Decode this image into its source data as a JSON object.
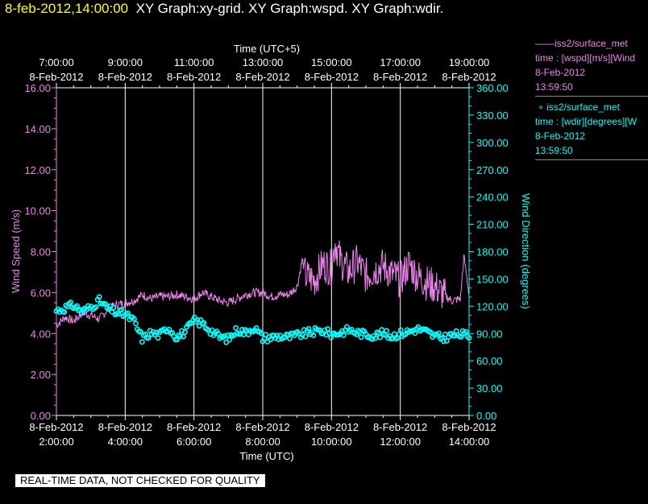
{
  "header": {
    "timestamp": "8-feb-2012,14:00:00",
    "graphs": "XY Graph:xy-grid.  XY Graph:wspd.  XY Graph:wdir."
  },
  "banner": "REAL-TIME DATA, NOT CHECKED FOR QUALITY",
  "legend": {
    "entries": [
      {
        "marker": "——",
        "name": "iss2/surface_met",
        "field": "time : [wspd][m/s][Wind",
        "date": "8-Feb-2012",
        "time": "13:59:50",
        "color": "#ee82ee"
      },
      {
        "marker": "∘",
        "name": "iss2/surface_met",
        "field": "time : [wdir][degrees][W",
        "date": "8-Feb-2012",
        "time": "13:59:50",
        "color": "#00ffff"
      }
    ]
  },
  "colors": {
    "wspd": "#ee82ee",
    "wdir": "#00ffff",
    "grid": "#ffffff",
    "background": "#000000"
  },
  "chart_data": {
    "type": "line",
    "top_axis": {
      "label": "Time (UTC+5)",
      "ticks": [
        {
          "t": 2,
          "time": "7:00:00",
          "date": "8-Feb-2012"
        },
        {
          "t": 4,
          "time": "9:00:00",
          "date": "8-Feb-2012"
        },
        {
          "t": 6,
          "time": "11:00:00",
          "date": "8-Feb-2012"
        },
        {
          "t": 8,
          "time": "13:00:00",
          "date": "8-Feb-2012"
        },
        {
          "t": 10,
          "time": "15:00:00",
          "date": "8-Feb-2012"
        },
        {
          "t": 12,
          "time": "17:00:00",
          "date": "8-Feb-2012"
        },
        {
          "t": 14,
          "time": "19:00:00",
          "date": "8-Feb-2012"
        }
      ]
    },
    "bottom_axis": {
      "label": "Time (UTC)",
      "ticks": [
        {
          "t": 2,
          "date": "8-Feb-2012",
          "time": "2:00:00"
        },
        {
          "t": 4,
          "date": "8-Feb-2012",
          "time": "4:00:00"
        },
        {
          "t": 6,
          "date": "8-Feb-2012",
          "time": "6:00:00"
        },
        {
          "t": 8,
          "date": "8-Feb-2012",
          "time": "8:00:00"
        },
        {
          "t": 10,
          "date": "8-Feb-2012",
          "time": "10:00:00"
        },
        {
          "t": 12,
          "date": "8-Feb-2012",
          "time": "12:00:00"
        },
        {
          "t": 14,
          "date": "8-Feb-2012",
          "time": "14:00:00"
        }
      ],
      "xlim": [
        2,
        14
      ]
    },
    "left_axis": {
      "label": "Wind Speed (m/s)",
      "ylim": [
        0,
        16
      ],
      "ticks": [
        {
          "v": 0,
          "label": "0.00"
        },
        {
          "v": 2,
          "label": "2.00"
        },
        {
          "v": 4,
          "label": "4.00"
        },
        {
          "v": 6,
          "label": "6.00"
        },
        {
          "v": 8,
          "label": "8.00"
        },
        {
          "v": 10,
          "label": "10.00"
        },
        {
          "v": 12,
          "label": "12.00"
        },
        {
          "v": 14,
          "label": "14.00"
        },
        {
          "v": 16,
          "label": "16.00"
        }
      ]
    },
    "right_axis": {
      "label": "Wind Direction (degrees)",
      "ylim": [
        0,
        360
      ],
      "ticks": [
        {
          "v": 0,
          "label": "0.00"
        },
        {
          "v": 30,
          "label": "30.00"
        },
        {
          "v": 60,
          "label": "60.00"
        },
        {
          "v": 90,
          "label": "90.00"
        },
        {
          "v": 120,
          "label": "120.00"
        },
        {
          "v": 150,
          "label": "150.00"
        },
        {
          "v": 180,
          "label": "180.00"
        },
        {
          "v": 210,
          "label": "210.00"
        },
        {
          "v": 240,
          "label": "240.00"
        },
        {
          "v": 270,
          "label": "270.00"
        },
        {
          "v": 300,
          "label": "300.00"
        },
        {
          "v": 330,
          "label": "330.00"
        },
        {
          "v": 360,
          "label": "360.00"
        }
      ]
    },
    "grid": "vertical",
    "series": [
      {
        "axis": "left",
        "style": "line",
        "x": [
          2.0,
          2.25,
          2.5,
          2.75,
          3.0,
          3.25,
          3.5,
          3.75,
          4.0,
          4.25,
          4.5,
          4.75,
          5.0,
          5.25,
          5.5,
          5.75,
          6.0,
          6.25,
          6.5,
          6.75,
          7.0,
          7.25,
          7.5,
          7.75,
          8.0,
          8.25,
          8.5,
          8.75,
          9.0,
          9.15,
          9.25,
          9.5,
          9.75,
          10.0,
          10.1,
          10.25,
          10.5,
          10.75,
          11.0,
          11.25,
          11.5,
          11.75,
          12.0,
          12.25,
          12.5,
          12.75,
          13.0,
          13.25,
          13.5,
          13.75,
          13.85,
          14.0
        ],
        "y": [
          4.4,
          4.8,
          4.6,
          5.0,
          4.9,
          4.7,
          5.2,
          5.4,
          5.5,
          5.6,
          5.9,
          5.7,
          5.8,
          5.8,
          5.9,
          5.8,
          5.7,
          6.0,
          5.8,
          5.6,
          5.5,
          5.7,
          5.9,
          6.0,
          6.0,
          5.8,
          5.9,
          5.9,
          6.3,
          7.6,
          6.8,
          6.6,
          7.4,
          7.2,
          8.5,
          7.6,
          7.0,
          7.5,
          6.8,
          7.1,
          7.3,
          6.9,
          6.6,
          7.4,
          6.8,
          6.5,
          6.3,
          5.9,
          5.6,
          5.7,
          7.8,
          5.9
        ]
      },
      {
        "axis": "right",
        "style": "markers",
        "x": [
          2.0,
          2.25,
          2.5,
          2.75,
          3.0,
          3.25,
          3.5,
          3.75,
          4.0,
          4.25,
          4.5,
          4.75,
          5.0,
          5.25,
          5.5,
          5.75,
          6.0,
          6.25,
          6.5,
          6.75,
          7.0,
          7.25,
          7.5,
          7.75,
          8.0,
          8.25,
          8.5,
          8.75,
          9.0,
          9.25,
          9.5,
          9.75,
          10.0,
          10.25,
          10.5,
          10.75,
          11.0,
          11.25,
          11.5,
          11.75,
          12.0,
          12.25,
          12.5,
          12.75,
          13.0,
          13.25,
          13.5,
          13.75,
          14.0
        ],
        "y": [
          115,
          118,
          121,
          114,
          119,
          126,
          117,
          113,
          111,
          104,
          84,
          91,
          88,
          97,
          86,
          92,
          104,
          101,
          93,
          86,
          84,
          94,
          91,
          97,
          85,
          86,
          87,
          86,
          88,
          90,
          92,
          93,
          89,
          91,
          94,
          91,
          89,
          88,
          90,
          87,
          90,
          92,
          95,
          92,
          87,
          85,
          88,
          89,
          88
        ]
      }
    ]
  }
}
